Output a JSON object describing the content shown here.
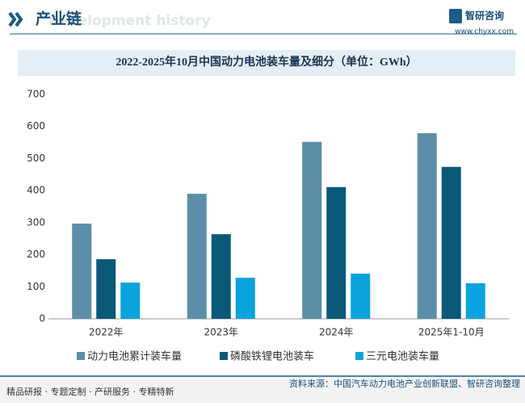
{
  "header": {
    "title": "产业链",
    "subtitle": "Development history",
    "brand": "智研咨询",
    "url": "www.chyxx.com"
  },
  "footer": {
    "left": "精品研报 · 专题定制 · 产研服务 · 专精特新",
    "right": "资料来源：中国汽车动力电池产业创新联盟、智研咨询整理"
  },
  "chart_data": {
    "type": "bar",
    "title": "2022-2025年10月中国动力电池装车量及细分（单位：GWh）",
    "categories": [
      "2022年",
      "2023年",
      "2024年",
      "2025年1-10月"
    ],
    "series": [
      {
        "name": "动力电池累计装车量",
        "color": "#5b8fa8",
        "values": [
          297,
          390,
          552,
          579
        ]
      },
      {
        "name": "磷酸铁锂电池装车",
        "color": "#0b5978",
        "values": [
          186,
          264,
          411,
          474
        ]
      },
      {
        "name": "三元电池装车量",
        "color": "#0aa3dd",
        "values": [
          113,
          128,
          141,
          111
        ]
      }
    ],
    "ylim": [
      0,
      700
    ],
    "yticks": [
      0,
      100,
      200,
      300,
      400,
      500,
      600,
      700
    ],
    "grid": false
  }
}
